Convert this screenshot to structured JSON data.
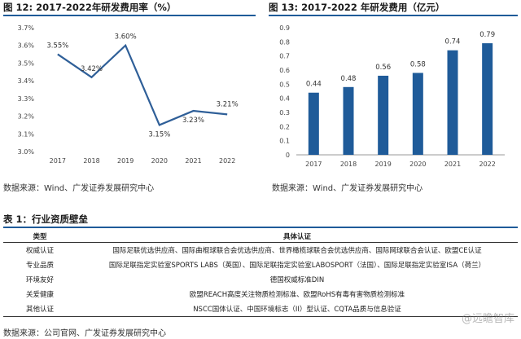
{
  "figures": {
    "fig12_title": "图 12: 2017-2022年研发费用率（%）",
    "fig13_title": "图 13: 2017-2022 年研发费用（亿元）",
    "fig12_source": "数据来源：Wind、广发证券发展研究中心",
    "fig13_source": "数据来源：Wind、广发证券发展研究中心"
  },
  "chart_data": [
    {
      "type": "line",
      "title": "",
      "x": [
        "2017",
        "2018",
        "2019",
        "2020",
        "2021",
        "2022"
      ],
      "series": [
        {
          "values": [
            3.55,
            3.42,
            3.6,
            3.15,
            3.23,
            3.21
          ],
          "labels": [
            "3.55%",
            "3.42%",
            "3.60%",
            "3.15%",
            "3.23%",
            "3.21%"
          ]
        }
      ],
      "y_ticks": [
        "3.0%",
        "3.1%",
        "3.2%",
        "3.3%",
        "3.4%",
        "3.5%",
        "3.6%",
        "3.7%"
      ],
      "ylim": [
        3.0,
        3.7
      ],
      "grid": false,
      "color": "#2f5f98"
    },
    {
      "type": "bar",
      "title": "",
      "categories": [
        "2017",
        "2018",
        "2019",
        "2020",
        "2021",
        "2022"
      ],
      "values": [
        0.44,
        0.48,
        0.56,
        0.58,
        0.74,
        0.79
      ],
      "labels": [
        "0.44",
        "0.48",
        "0.56",
        "0.58",
        "0.74",
        "0.79"
      ],
      "y_ticks": [
        "0",
        "0.1",
        "0.2",
        "0.3",
        "0.4",
        "0.5",
        "0.6",
        "0.7",
        "0.8",
        "0.9"
      ],
      "ylim": [
        0,
        0.9
      ],
      "grid": false,
      "color": "#1f5b99"
    }
  ],
  "table": {
    "title": "表 1：行业资质壁垒",
    "headers": [
      "类型",
      "具体认证"
    ],
    "rows": [
      [
        "权威认证",
        "国际足联优选供应商、国际曲棍球联合会优选供应商、世界橄榄球联合会优选供应商、国际网球联合会认证、欧盟CE认证"
      ],
      [
        "专业品质",
        "国际足联指定实验室SPORTS LABS（英国）、国际足联指定实验室LABOSPORT（法国）、国际足联指定实验室ISA（荷兰）"
      ],
      [
        "环境友好",
        "德国权威标准DIN"
      ],
      [
        "关爱健康",
        "欧盟REACH高度关注物质检测标准、欧盟RoHS有毒有害物质检测标准"
      ],
      [
        "其他认证",
        "NSCC国体认证、中国环境标志（II）型认证、CQTA品质与信息验证"
      ]
    ],
    "source": "数据来源：公司官网、广发证券发展研究中心"
  },
  "watermark": "@远瞻智库"
}
